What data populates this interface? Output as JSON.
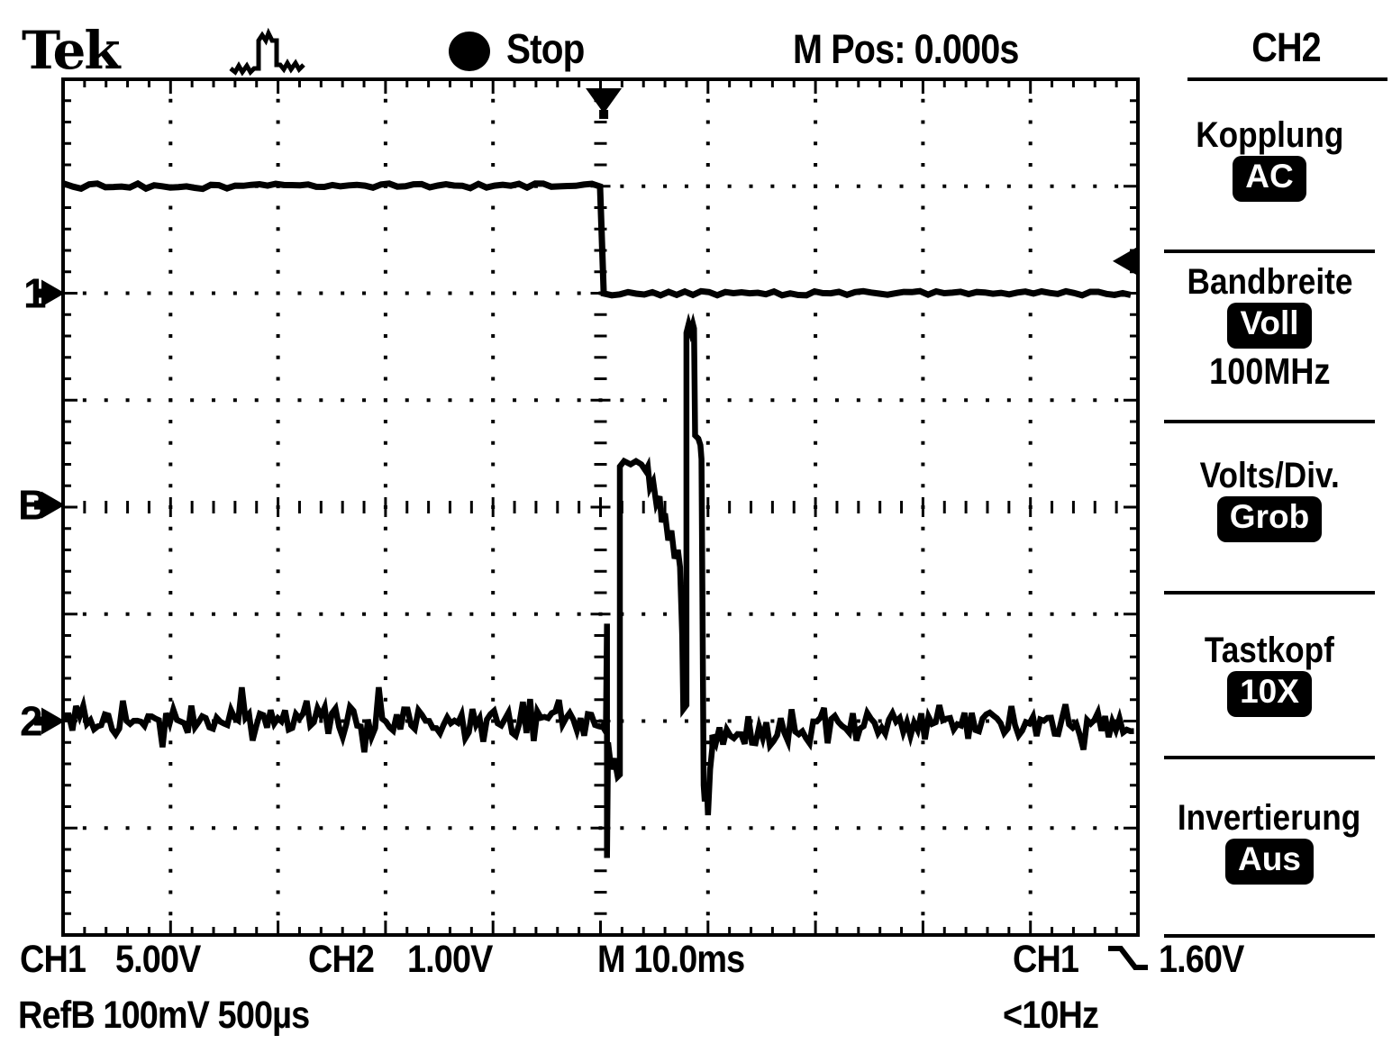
{
  "colors": {
    "fg": "#000000",
    "bg": "#ffffff"
  },
  "top_bar": {
    "logo": "Tek",
    "trigger_type_icon": "pulse-waveform-icon",
    "acquisition_state": "Stop",
    "horizontal_position": "M Pos: 0.000s"
  },
  "menu": {
    "title": "CH2",
    "items": [
      {
        "label": "Kopplung",
        "value": "AC",
        "sub": ""
      },
      {
        "label": "Bandbreite",
        "value": "Voll",
        "sub": "100MHz"
      },
      {
        "label": "Volts/Div.",
        "value": "Grob",
        "sub": ""
      },
      {
        "label": "Tastkopf",
        "value": "10X",
        "sub": ""
      },
      {
        "label": "Invertierung",
        "value": "Aus",
        "sub": ""
      }
    ]
  },
  "readouts": {
    "ch1_label": "CH1",
    "ch1_scale": "5.00V",
    "ch2_label": "CH2",
    "ch2_scale": "1.00V",
    "timebase": "M 10.0ms",
    "trigger_source": "CH1",
    "trigger_slope_icon": "falling-edge-icon",
    "trigger_level": "1.60V",
    "trigger_coupling": "<10Hz",
    "ref_line": "RefB 100mV 500µs"
  },
  "markers": {
    "ch1": "1",
    "refb": "B",
    "ch2": "2"
  },
  "chart_data": {
    "type": "line",
    "title": "",
    "x_units": "time, 10.0 ms/div, trigger at center",
    "y_units": "vertical divisions (CH1 5.00V/div, CH2 1.00V/div, RefB 100mV/div)",
    "divisions": {
      "x": 10,
      "y": 8
    },
    "grid": {
      "dot_step_div": 0.2,
      "center_rulers": true,
      "edge_rulers": true
    },
    "trigger": {
      "position_div": 5.03,
      "level_div": 1.7,
      "slope": "falling"
    },
    "marker_levels_div": {
      "ch1": 2.0,
      "refb": 3.98,
      "ch2": 6.0
    },
    "noise_seed": 12,
    "series": [
      {
        "name": "CH1",
        "kind": "step",
        "points_div": [
          [
            0,
            1.0
          ],
          [
            5.03,
            1.0
          ],
          [
            5.03,
            2.0
          ],
          [
            10,
            2.0
          ]
        ]
      },
      {
        "name": "CH2",
        "kind": "noise_with_burst",
        "noise": {
          "left": {
            "x0": 0.02,
            "x1": 5.02,
            "base": 6.0,
            "halfband": 0.21
          },
          "right": {
            "x0": 6.04,
            "x1": 9.98,
            "base_start": 6.16,
            "base_end": 6.02,
            "halfband": 0.21
          }
        },
        "burst_points_div": [
          [
            5.02,
            6.05
          ],
          [
            5.05,
            6.1
          ],
          [
            5.06,
            5.09
          ],
          [
            5.06,
            7.28
          ],
          [
            5.07,
            6.2
          ],
          [
            5.1,
            6.45
          ],
          [
            5.13,
            6.35
          ],
          [
            5.16,
            6.52
          ],
          [
            5.18,
            6.5
          ],
          [
            5.18,
            3.62
          ],
          [
            5.22,
            3.57
          ],
          [
            5.28,
            3.6
          ],
          [
            5.33,
            3.57
          ],
          [
            5.38,
            3.6
          ],
          [
            5.42,
            3.66
          ],
          [
            5.44,
            3.62
          ],
          [
            5.46,
            3.82
          ],
          [
            5.49,
            3.76
          ],
          [
            5.52,
            3.97
          ],
          [
            5.55,
            3.9
          ],
          [
            5.57,
            4.14
          ],
          [
            5.6,
            4.06
          ],
          [
            5.63,
            4.31
          ],
          [
            5.66,
            4.22
          ],
          [
            5.69,
            4.48
          ],
          [
            5.72,
            4.4
          ],
          [
            5.74,
            4.56
          ],
          [
            5.76,
            5.2
          ],
          [
            5.77,
            5.89
          ],
          [
            5.8,
            5.85
          ],
          [
            5.8,
            2.37
          ],
          [
            5.82,
            2.29
          ],
          [
            5.84,
            2.36
          ],
          [
            5.86,
            2.29
          ],
          [
            5.87,
            2.33
          ],
          [
            5.88,
            3.33
          ],
          [
            5.91,
            3.36
          ],
          [
            5.93,
            3.42
          ],
          [
            5.94,
            3.55
          ],
          [
            5.96,
            6.6
          ],
          [
            5.97,
            6.75
          ],
          [
            5.99,
            6.62
          ],
          [
            6.0,
            6.88
          ],
          [
            6.02,
            6.45
          ],
          [
            6.04,
            6.25
          ]
        ]
      }
    ]
  }
}
